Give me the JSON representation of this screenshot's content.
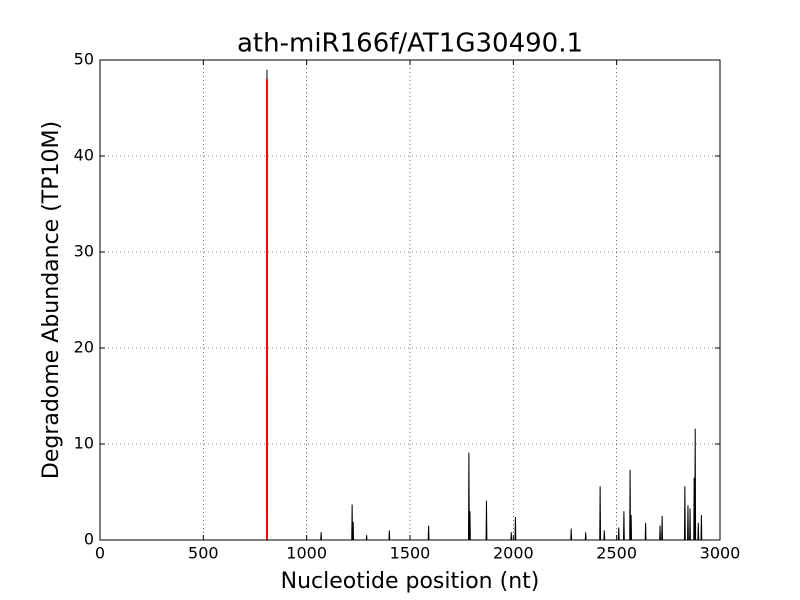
{
  "chart_data": {
    "type": "line",
    "title": "ath-miR166f/AT1G30490.1",
    "x_label": "Nucleotide position (nt)",
    "y_label": "Degradome Abundance (TP10M)",
    "xlim": [
      0,
      3000
    ],
    "xticks": [
      0,
      500,
      1000,
      1500,
      2000,
      2500,
      3000
    ],
    "ylim": [
      0,
      50
    ],
    "yticks": [
      0,
      10,
      20,
      30,
      40,
      50
    ],
    "grid": true,
    "series": [
      {
        "color": "#000000",
        "x": [
          0,
          806,
          808,
          810,
          1068,
          1070,
          1072,
          1218,
          1220,
          1222,
          1224,
          1225,
          1227,
          1288,
          1290,
          1292,
          1398,
          1400,
          1402,
          1588,
          1590,
          1592,
          1783,
          1785,
          1787,
          1789,
          1790,
          1792,
          1868,
          1870,
          1872,
          1988,
          1990,
          1992,
          2008,
          2010,
          2012,
          2278,
          2280,
          2282,
          2348,
          2350,
          2352,
          2418,
          2420,
          2422,
          2438,
          2440,
          2442,
          2508,
          2510,
          2512,
          2533,
          2535,
          2537,
          2563,
          2565,
          2567,
          2568,
          2570,
          2572,
          2638,
          2640,
          2642,
          2708,
          2710,
          2712,
          2718,
          2720,
          2722,
          2828,
          2830,
          2832,
          2843,
          2845,
          2847,
          2853,
          2855,
          2857,
          2873,
          2875,
          2877,
          2878,
          2880,
          2882,
          2893,
          2895,
          2897,
          2908,
          2910,
          2912
        ],
        "values": [
          0,
          0,
          49,
          0,
          0,
          0.8,
          0,
          0,
          3.7,
          0,
          0,
          1.9,
          0,
          0,
          0.5,
          0,
          0,
          1.0,
          0,
          0,
          1.5,
          0,
          0,
          9.1,
          0,
          0,
          3.0,
          0,
          0,
          4.1,
          0,
          0,
          0.8,
          0,
          0,
          2.4,
          0,
          0,
          1.2,
          0,
          0,
          0.8,
          0,
          0,
          5.6,
          0,
          0,
          1.0,
          0,
          0,
          1.3,
          0,
          0,
          3.0,
          0,
          0,
          7.3,
          0,
          0,
          2.6,
          0,
          0,
          1.8,
          0,
          0,
          1.5,
          0,
          0,
          2.5,
          0,
          0,
          5.6,
          0,
          0,
          3.6,
          0,
          0,
          3.3,
          0,
          0,
          6.5,
          0,
          0,
          11.6,
          0,
          0,
          1.8,
          0,
          0,
          2.6,
          0
        ]
      },
      {
        "color": "#ff0000",
        "x": [
          808,
          808
        ],
        "values": [
          0,
          48
        ]
      }
    ]
  }
}
